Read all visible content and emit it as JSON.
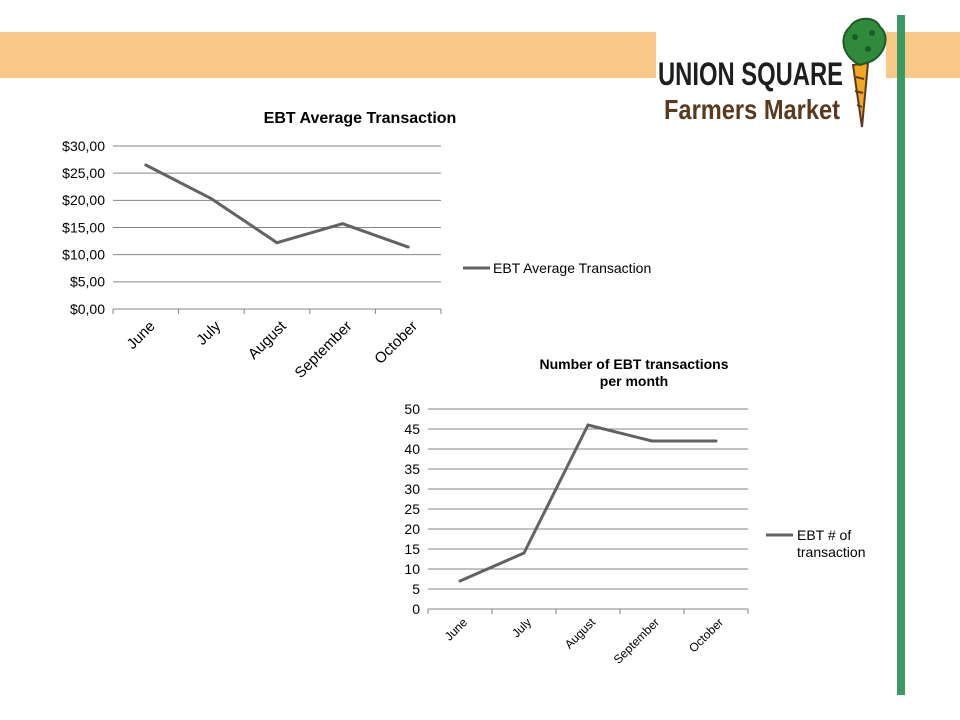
{
  "logo": {
    "line1": "UNION SQUARE",
    "line2": "Farmers Market",
    "colors": {
      "green": "#2f8a3c",
      "brown": "#5a3a1e",
      "carrot": "#f5a623"
    }
  },
  "colors": {
    "banner": "#fbc987",
    "accent_bar": "#3a9a62",
    "series_line": "#626262"
  },
  "chart_data": [
    {
      "type": "line",
      "title": "EBT Average Transaction",
      "categories": [
        "June",
        "July",
        "August",
        "September",
        "October"
      ],
      "series": [
        {
          "name": "EBT Average Transaction",
          "values": [
            26.5,
            20.3,
            12.2,
            15.7,
            11.4
          ]
        }
      ],
      "ylim": [
        0,
        30
      ],
      "yticks": [
        "$0,00",
        "$5,00",
        "$10,00",
        "$15,00",
        "$20,00",
        "$25,00",
        "$30,00"
      ],
      "grid": true,
      "legend": "right"
    },
    {
      "type": "line",
      "title_lines": [
        "Number of EBT transactions",
        "per month"
      ],
      "categories": [
        "June",
        "July",
        "August",
        "September",
        "October"
      ],
      "series": [
        {
          "name_lines": [
            "EBT # of",
            "transaction"
          ],
          "values": [
            7,
            14,
            46,
            42,
            42
          ]
        }
      ],
      "ylim": [
        0,
        50
      ],
      "yticks": [
        "0",
        "5",
        "10",
        "15",
        "20",
        "25",
        "30",
        "35",
        "40",
        "45",
        "50"
      ],
      "grid": true,
      "legend": "right"
    }
  ]
}
